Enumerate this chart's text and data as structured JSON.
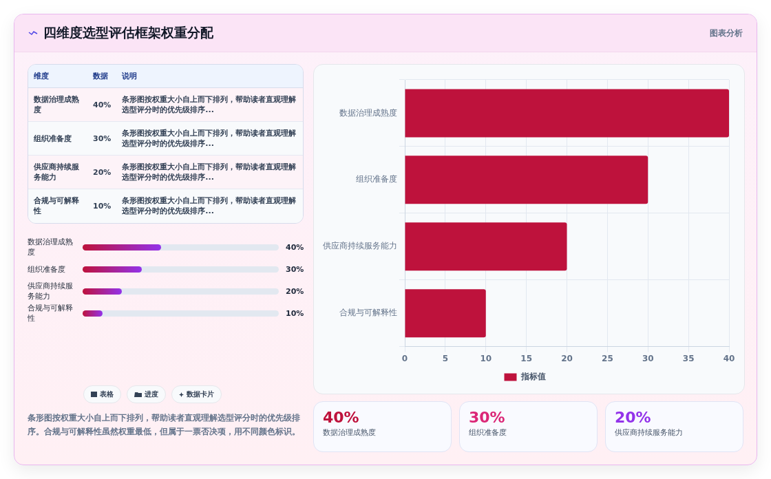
{
  "chart_data": {
    "type": "bar",
    "orientation": "horizontal",
    "title": "四维度选型评估框架权重分配",
    "categories": [
      "数据治理成熟度",
      "组织准备度",
      "供应商持续服务能力",
      "合规与可解释性"
    ],
    "series": [
      {
        "name": "指标值",
        "color": "#be123c",
        "values": [
          40,
          30,
          20,
          10
        ]
      }
    ],
    "value_labels": [
      "40%",
      "30%",
      "20%",
      "10%"
    ],
    "xlim": [
      0,
      40
    ],
    "xticks": [
      0,
      5,
      10,
      15,
      20,
      25,
      30,
      35,
      40
    ],
    "grid": true,
    "legend": "bottom",
    "annotations": [
      "图表分析",
      "维度",
      "数据",
      "说明",
      "条形图按权重大小自上而下排列，帮助读者直观理解选型评分时的优先级排序...",
      "条形图按权重大小自上而下排列，帮助读者直观理解选型评分时的优先级排序...",
      "条形图按权重大小自上而下排列，帮助读者直观理解选型评分时的优先级排序...",
      "条形图按权重大小自上而下排列，帮助读者直观理解选型评分时的优先级排序...",
      "表格",
      "进度",
      "数据卡片",
      "条形图按权重大小自上而下排列，帮助读者直观理解选型评分时的优先级排序。合规与可解释性虽然权重最低，但属于一票否决项，用不同颜色标识。"
    ]
  }
}
